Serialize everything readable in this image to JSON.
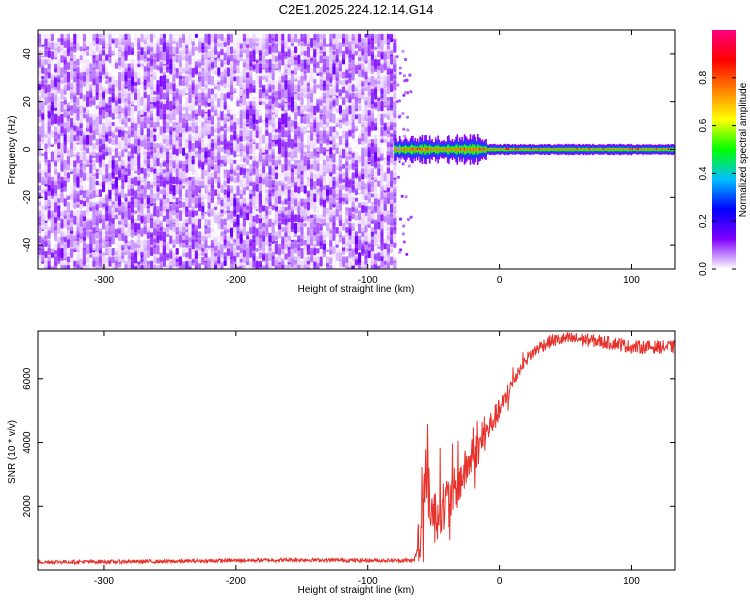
{
  "title": "C2E1.2025.224.12.14.G14",
  "chart_data": [
    {
      "type": "heatmap",
      "title": "C2E1.2025.224.12.14.G14",
      "xlabel": "Height of straight line (km)",
      "ylabel": "Frequency (Hz)",
      "xlim": [
        -350,
        133
      ],
      "ylim": [
        -50,
        50
      ],
      "xticks": [
        -300,
        -200,
        -100,
        0,
        100
      ],
      "xtick_labels": [
        "-300",
        "-200",
        "-100",
        "0",
        "100"
      ],
      "yticks": [
        -40,
        -20,
        0,
        20,
        40
      ],
      "ytick_labels": [
        "-40",
        "-20",
        "0",
        "20",
        "40"
      ],
      "noise_region_x": [
        -350,
        -80
      ],
      "signal_band": {
        "x_start": -80,
        "x_end": 133,
        "center_frequency": 0,
        "half_width_near_start": 5,
        "half_width_far": 2
      },
      "peak_amplitude": 1.0,
      "colorbar": {
        "label": "Normalized spectral amplitude",
        "range": [
          0,
          1
        ],
        "ticks": [
          0,
          0.2,
          0.4,
          0.6,
          0.8
        ],
        "tick_labels": [
          "0.0",
          "0.2",
          "0.4",
          "0.6",
          "0.8"
        ],
        "colors": [
          "#ffffff",
          "#7f00ff",
          "#0000ff",
          "#00bfff",
          "#00ff00",
          "#ffff00",
          "#ff8000",
          "#ff0000",
          "#ff0080"
        ]
      },
      "grid": false
    },
    {
      "type": "line",
      "xlabel": "Height of straight line (km)",
      "ylabel": "SNR (10 * v/v)",
      "xlim": [
        -350,
        133
      ],
      "ylim": [
        0,
        7500
      ],
      "xticks": [
        -300,
        -200,
        -100,
        0,
        100
      ],
      "xtick_labels": [
        "-300",
        "-200",
        "-100",
        "0",
        "100"
      ],
      "yticks": [
        2000,
        4000,
        6000
      ],
      "ytick_labels": [
        "2000",
        "4000",
        "6000"
      ],
      "series": [
        {
          "color": "#e8312a",
          "x": [
            -350,
            -300,
            -250,
            -200,
            -150,
            -100,
            -65,
            -60,
            -57,
            -54,
            -50,
            -45,
            -40,
            -35,
            -30,
            -25,
            -20,
            -15,
            -10,
            -5,
            0,
            5,
            10,
            15,
            20,
            25,
            30,
            35,
            40,
            50,
            60,
            70,
            80,
            90,
            100,
            110,
            120,
            133
          ],
          "y": [
            250,
            260,
            270,
            300,
            320,
            300,
            300,
            900,
            3000,
            2500,
            1600,
            2000,
            2100,
            2400,
            2800,
            3200,
            3600,
            3900,
            4300,
            4700,
            5000,
            5400,
            5900,
            6300,
            6600,
            6800,
            7000,
            7100,
            7200,
            7250,
            7250,
            7200,
            7150,
            7100,
            7000,
            7000,
            7000,
            7000
          ]
        }
      ],
      "grid": false
    }
  ]
}
